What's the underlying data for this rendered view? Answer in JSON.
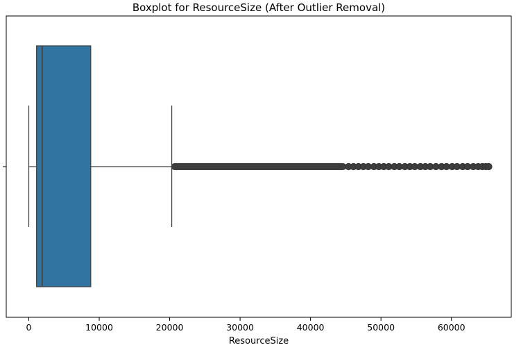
{
  "chart_data": {
    "type": "boxplot",
    "title": "Boxplot for ResourceSize (After Outlier Removal)",
    "xlabel": "ResourceSize",
    "ylabel": "",
    "xlim": [
      -3200,
      68500
    ],
    "x_ticks": [
      0,
      10000,
      20000,
      30000,
      40000,
      50000,
      60000
    ],
    "x_tick_labels": [
      "0",
      "10000",
      "20000",
      "30000",
      "40000",
      "50000",
      "60000"
    ],
    "grid": false,
    "orientation": "horizontal",
    "box": {
      "whisker_low": 0,
      "q1": 1100,
      "median": 1900,
      "q3": 8800,
      "whisker_high": 20300,
      "color": "#3274a1",
      "line_color": "#3d3d3d"
    },
    "outliers": {
      "dense_range": [
        20300,
        45000
      ],
      "sparse_values": [
        45400,
        46100,
        46800,
        47500,
        48200,
        49000,
        49700,
        50400,
        51100,
        51900,
        52600,
        53400,
        54100,
        54800,
        55600,
        56300,
        57000,
        57800,
        58600,
        59300,
        60100,
        60800,
        61600,
        62300,
        63100,
        63800,
        64400,
        64900,
        65300
      ],
      "color": "#3d3d3d"
    }
  }
}
